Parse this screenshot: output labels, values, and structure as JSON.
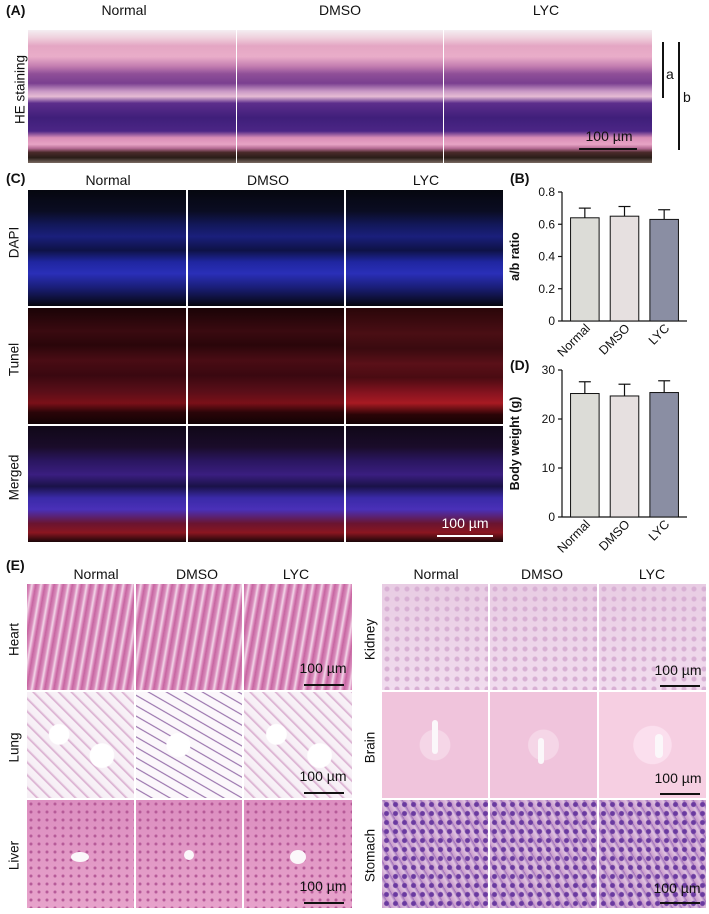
{
  "panels": {
    "A": {
      "letter": "(A)",
      "cols": [
        "Normal",
        "DMSO",
        "LYC"
      ],
      "row_label": "HE staining",
      "brace_labels": [
        "a",
        "b"
      ],
      "scale_bar": "100 µm"
    },
    "C": {
      "letter": "(C)",
      "cols": [
        "Normal",
        "DMSO",
        "LYC"
      ],
      "rows": [
        "DAPI",
        "Tunel",
        "Merged"
      ],
      "scale_bar": "100 µm"
    },
    "B": {
      "letter": "(B)"
    },
    "D": {
      "letter": "(D)"
    },
    "E": {
      "letter": "(E)",
      "left_cols": [
        "Normal",
        "DMSO",
        "LYC"
      ],
      "left_rows": [
        "Heart",
        "Lung",
        "Liver"
      ],
      "right_cols": [
        "Normal",
        "DMSO",
        "LYC"
      ],
      "right_rows": [
        "Kidney",
        "Brain",
        "Stomach"
      ],
      "scale_bar": "100 µm"
    }
  },
  "chart_data": [
    {
      "panel": "B",
      "type": "bar",
      "categories": [
        "Normal",
        "DMSO",
        "LYC"
      ],
      "values": [
        0.64,
        0.65,
        0.63
      ],
      "errors": [
        0.06,
        0.06,
        0.06
      ],
      "ylabel": "a/b ratio",
      "ylim": [
        0,
        0.8
      ],
      "yticks": [
        "0",
        "0.2",
        "0.4",
        "0.6",
        "0.8"
      ],
      "colors": [
        "#dcdcd7",
        "#e6e0e0",
        "#8a8ea3"
      ]
    },
    {
      "panel": "D",
      "type": "bar",
      "categories": [
        "Normal",
        "DMSO",
        "LYC"
      ],
      "values": [
        25.2,
        24.7,
        25.4
      ],
      "errors": [
        2.4,
        2.4,
        2.4
      ],
      "ylabel": "Body weight (g)",
      "ylim": [
        0,
        30
      ],
      "yticks": [
        "0",
        "10",
        "20",
        "30"
      ],
      "colors": [
        "#dcdcd7",
        "#e6e0e0",
        "#8a8ea3"
      ]
    }
  ]
}
